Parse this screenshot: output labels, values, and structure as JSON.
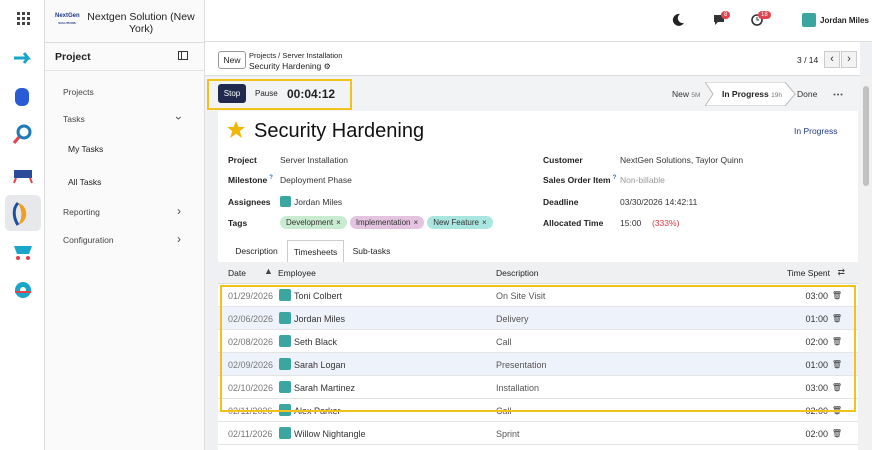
{
  "topbar": {
    "logo": [
      "NextGen",
      "SOLUTIONS"
    ],
    "company": "Nextgen Solution (New York)",
    "message_count": "8",
    "activity_count": "18",
    "user": "Jordan Miles"
  },
  "sidebar": {
    "title": "Project",
    "items": [
      "Projects",
      "Tasks",
      "My Tasks",
      "All Tasks",
      "Reporting",
      "Configuration"
    ]
  },
  "control_panel": {
    "new_button": "New",
    "breadcrumb": [
      "Projects",
      "Server Installation"
    ],
    "record": "Security Hardening",
    "pager": "3 / 14"
  },
  "timer": {
    "stop": "Stop",
    "pause": "Pause",
    "elapsed": "00:04:12"
  },
  "stages": [
    {
      "name": "New",
      "duration": "5M"
    },
    {
      "name": "In Progress",
      "duration": "19h"
    },
    {
      "name": "Done"
    }
  ],
  "form": {
    "title": "Security Hardening",
    "status": "In Progress",
    "left_fields": [
      {
        "label": "Project",
        "value": "Server Installation"
      },
      {
        "label": "Milestone",
        "help": "?",
        "value": "Deployment Phase"
      },
      {
        "label": "Assignees",
        "value": "Jordan Miles"
      },
      {
        "label": "Tags",
        "tags": [
          "Development",
          "Implementation",
          "New Feature"
        ]
      }
    ],
    "right_fields": [
      {
        "label": "Customer",
        "value": "NextGen Solutions, Taylor Quinn"
      },
      {
        "label": "Sales Order Item",
        "help": "?",
        "value": "Non-billable"
      },
      {
        "label": "Deadline",
        "value": "03/30/2026 14:42:11"
      },
      {
        "label": "Allocated Time",
        "value": "15:00",
        "extra": "(333%)"
      }
    ]
  },
  "tabs": [
    "Description",
    "Timesheets",
    "Sub-tasks"
  ],
  "table": {
    "columns": [
      "Date",
      "Employee",
      "Description",
      "Time Spent"
    ],
    "rows": [
      [
        "01/29/2026",
        "Toni Colbert",
        "On Site Visit",
        "03:00"
      ],
      [
        "02/06/2026",
        "Jordan Miles",
        "Delivery",
        "01:00"
      ],
      [
        "02/08/2026",
        "Seth Black",
        "Call",
        "02:00"
      ],
      [
        "02/09/2026",
        "Sarah Logan",
        "Presentation",
        "01:00"
      ],
      [
        "02/10/2026",
        "Sarah Martinez",
        "Installation",
        "03:00"
      ],
      [
        "02/11/2026",
        "Alex Parker",
        "Call",
        "02:00"
      ],
      [
        "02/11/2026",
        "Willow Nightangle",
        "Sprint",
        "02:00"
      ]
    ]
  }
}
